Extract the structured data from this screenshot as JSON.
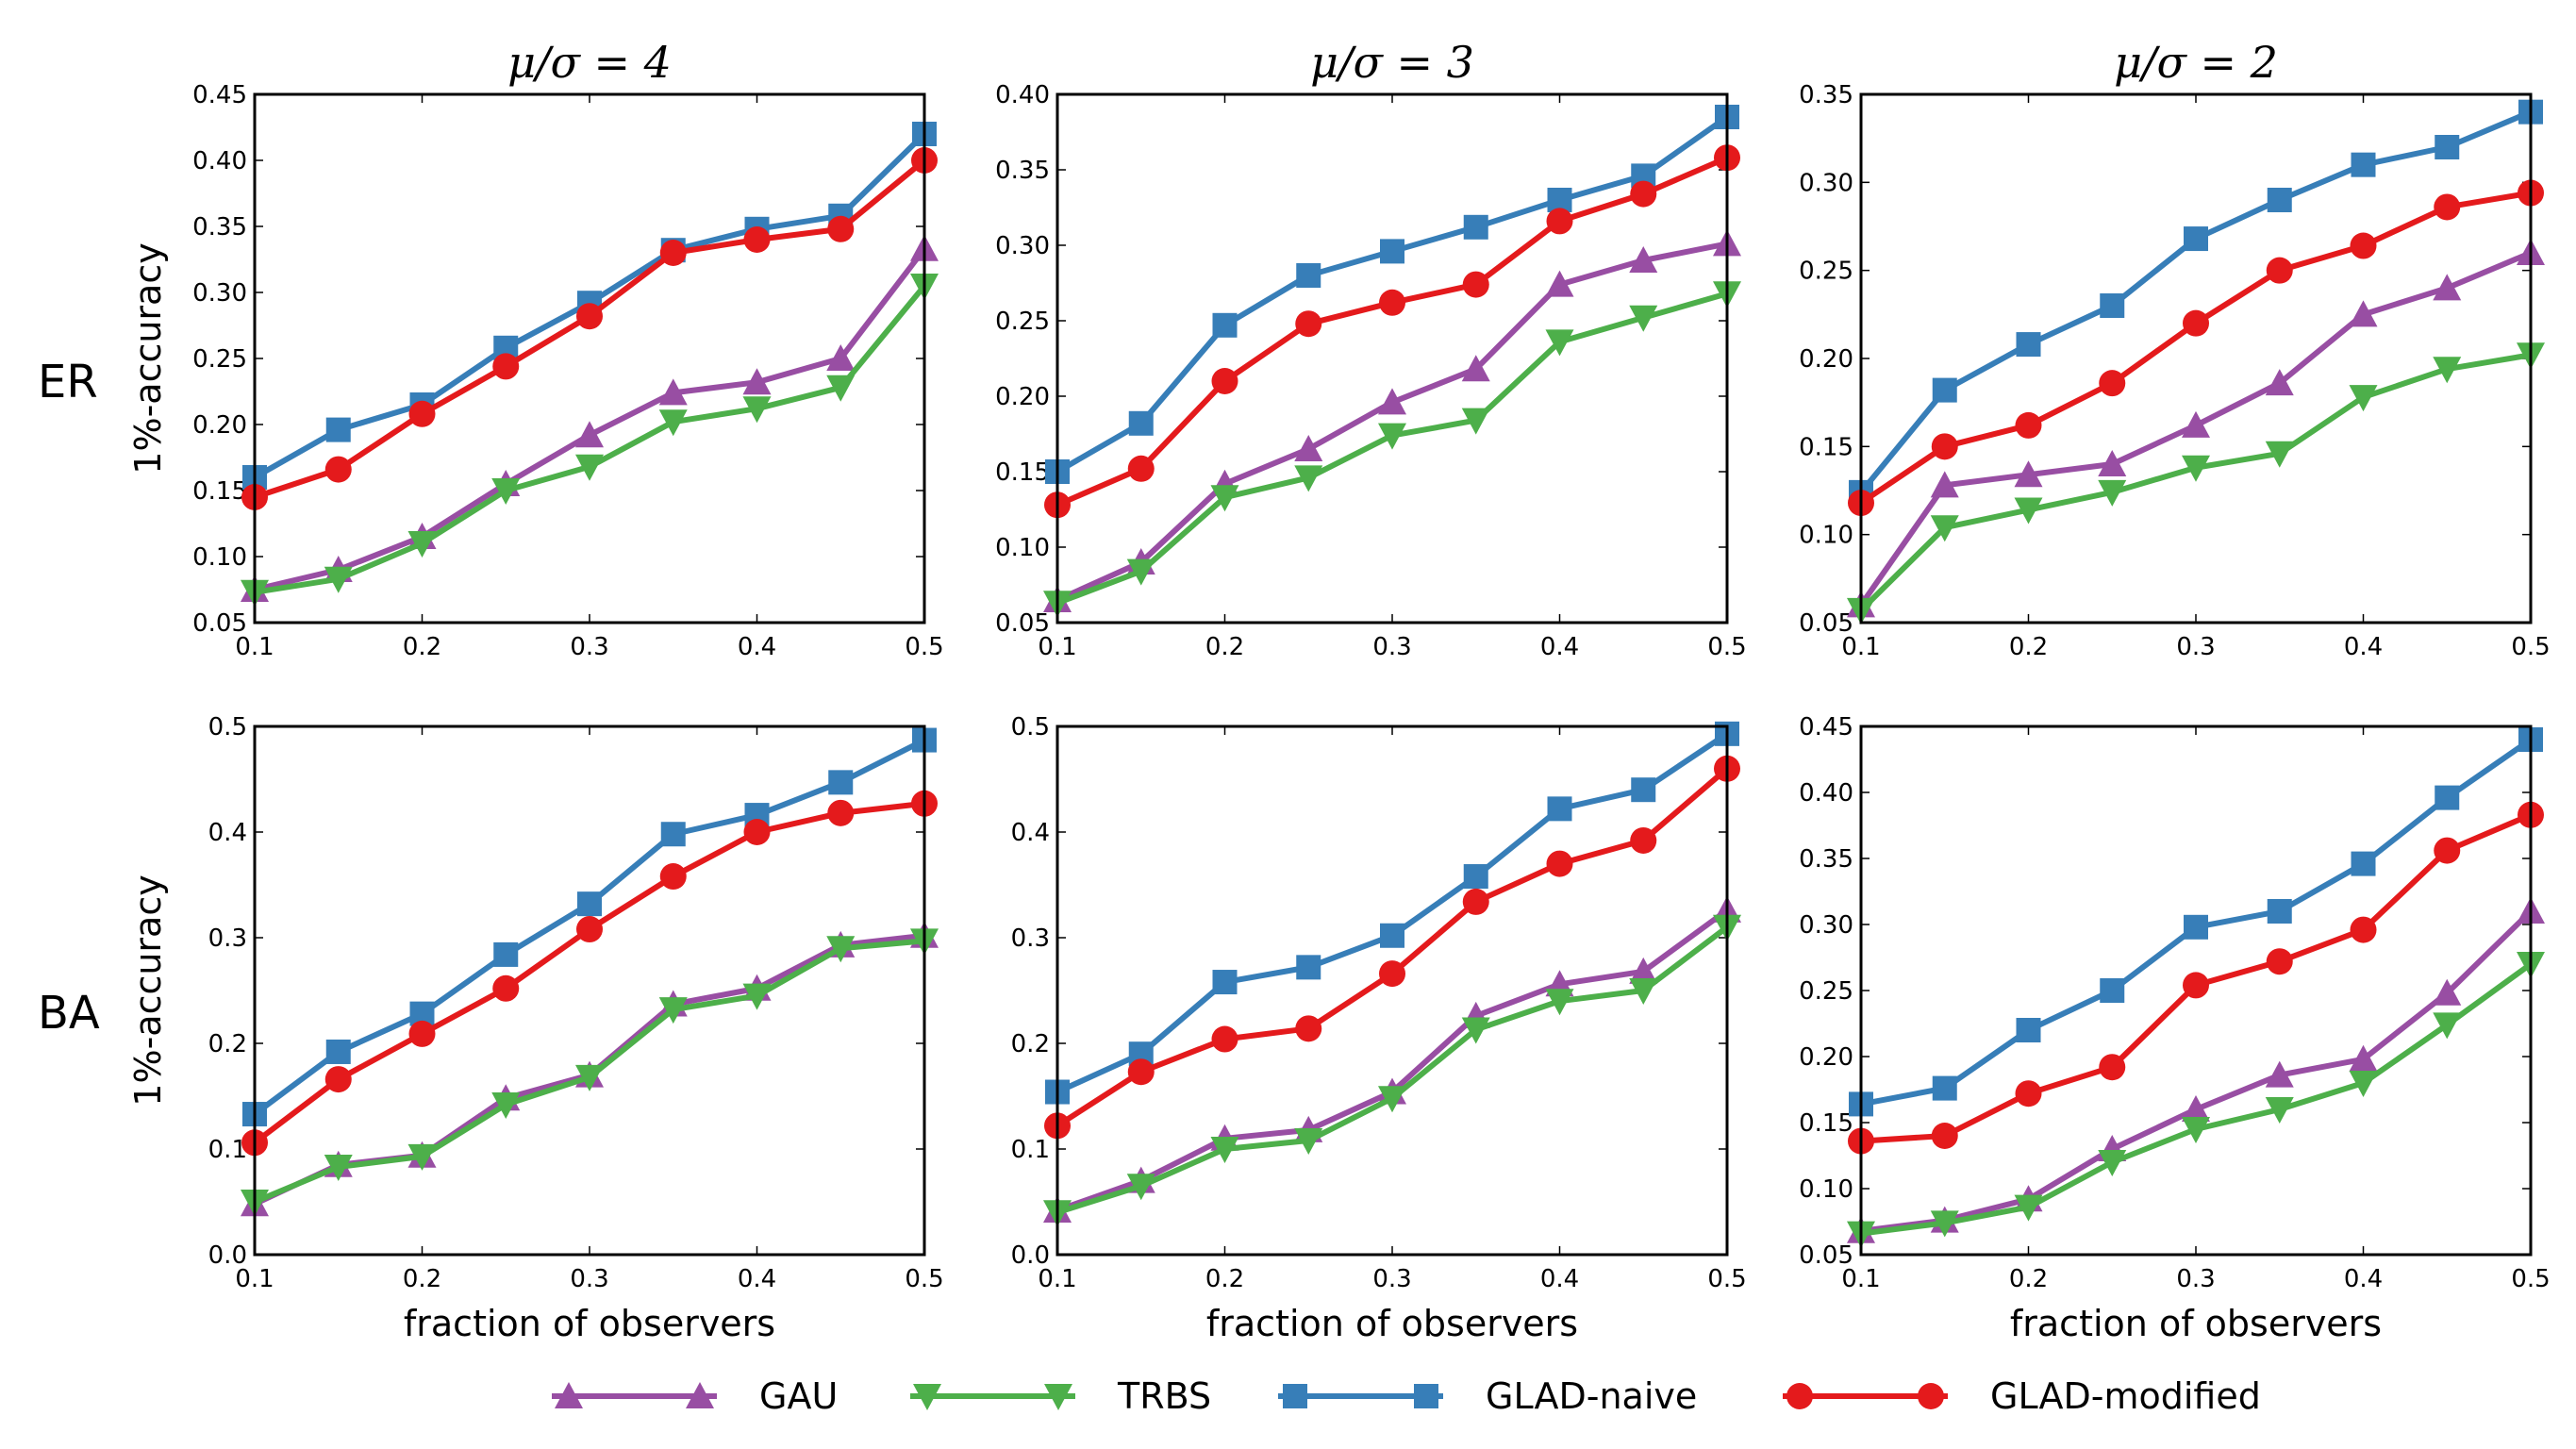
{
  "colors": {
    "GAU": "#984ea3",
    "TRBS": "#4daf4a",
    "GLAD-naive": "#377eb8",
    "GLAD-modified": "#e41a1c"
  },
  "legend": [
    {
      "name": "GAU",
      "marker": "triangle-up"
    },
    {
      "name": "TRBS",
      "marker": "triangle-down"
    },
    {
      "name": "GLAD-naive",
      "marker": "square"
    },
    {
      "name": "GLAD-modified",
      "marker": "circle"
    }
  ],
  "row_labels": [
    "ER",
    "BA"
  ],
  "col_titles": [
    "μ/σ = 4",
    "μ/σ = 3",
    "μ/σ = 2"
  ],
  "chart_data": [
    {
      "type": "line",
      "row": 0,
      "col": 0,
      "title": "μ/σ = 4",
      "xlabel": "",
      "ylabel": "1%-accuracy",
      "x": [
        0.1,
        0.15,
        0.2,
        0.25,
        0.3,
        0.35,
        0.4,
        0.45,
        0.5
      ],
      "xlim": [
        0.1,
        0.5
      ],
      "ylim": [
        0.05,
        0.45
      ],
      "xticks": [
        "0.1",
        "0.2",
        "0.3",
        "0.4",
        "0.5"
      ],
      "yticks": [
        "0.05",
        "0.10",
        "0.15",
        "0.20",
        "0.25",
        "0.30",
        "0.35",
        "0.40",
        "0.45"
      ],
      "series": [
        {
          "name": "GAU",
          "values": [
            0.075,
            0.09,
            0.115,
            0.155,
            0.192,
            0.224,
            0.232,
            0.25,
            0.333
          ]
        },
        {
          "name": "TRBS",
          "values": [
            0.073,
            0.083,
            0.11,
            0.15,
            0.168,
            0.202,
            0.212,
            0.228,
            0.305
          ]
        },
        {
          "name": "GLAD-naive",
          "values": [
            0.16,
            0.196,
            0.215,
            0.258,
            0.292,
            0.332,
            0.348,
            0.358,
            0.42
          ]
        },
        {
          "name": "GLAD-modified",
          "values": [
            0.145,
            0.166,
            0.208,
            0.244,
            0.282,
            0.33,
            0.34,
            0.348,
            0.4
          ]
        }
      ]
    },
    {
      "type": "line",
      "row": 0,
      "col": 1,
      "title": "μ/σ = 3",
      "xlabel": "",
      "ylabel": "",
      "x": [
        0.1,
        0.15,
        0.2,
        0.25,
        0.3,
        0.35,
        0.4,
        0.45,
        0.5
      ],
      "xlim": [
        0.1,
        0.5
      ],
      "ylim": [
        0.05,
        0.4
      ],
      "xticks": [
        "0.1",
        "0.2",
        "0.3",
        "0.4",
        "0.5"
      ],
      "yticks": [
        "0.05",
        "0.10",
        "0.15",
        "0.20",
        "0.25",
        "0.30",
        "0.35",
        "0.40"
      ],
      "series": [
        {
          "name": "GAU",
          "values": [
            0.065,
            0.09,
            0.142,
            0.165,
            0.196,
            0.218,
            0.274,
            0.29,
            0.301
          ]
        },
        {
          "name": "TRBS",
          "values": [
            0.063,
            0.084,
            0.133,
            0.146,
            0.174,
            0.184,
            0.236,
            0.252,
            0.268
          ]
        },
        {
          "name": "GLAD-naive",
          "values": [
            0.15,
            0.182,
            0.247,
            0.28,
            0.296,
            0.312,
            0.33,
            0.346,
            0.385
          ]
        },
        {
          "name": "GLAD-modified",
          "values": [
            0.128,
            0.152,
            0.21,
            0.248,
            0.262,
            0.274,
            0.316,
            0.334,
            0.358
          ]
        }
      ]
    },
    {
      "type": "line",
      "row": 0,
      "col": 2,
      "title": "μ/σ = 2",
      "xlabel": "",
      "ylabel": "",
      "x": [
        0.1,
        0.15,
        0.2,
        0.25,
        0.3,
        0.35,
        0.4,
        0.45,
        0.5
      ],
      "xlim": [
        0.1,
        0.5
      ],
      "ylim": [
        0.05,
        0.35
      ],
      "xticks": [
        "0.1",
        "0.2",
        "0.3",
        "0.4",
        "0.5"
      ],
      "yticks": [
        "0.05",
        "0.10",
        "0.15",
        "0.20",
        "0.25",
        "0.30",
        "0.35"
      ],
      "series": [
        {
          "name": "GAU",
          "values": [
            0.06,
            0.128,
            0.134,
            0.14,
            0.162,
            0.186,
            0.225,
            0.24,
            0.26
          ]
        },
        {
          "name": "TRBS",
          "values": [
            0.057,
            0.104,
            0.114,
            0.124,
            0.138,
            0.146,
            0.178,
            0.194,
            0.202
          ]
        },
        {
          "name": "GLAD-naive",
          "values": [
            0.124,
            0.182,
            0.208,
            0.23,
            0.268,
            0.29,
            0.31,
            0.32,
            0.34
          ]
        },
        {
          "name": "GLAD-modified",
          "values": [
            0.118,
            0.15,
            0.162,
            0.186,
            0.22,
            0.25,
            0.264,
            0.286,
            0.294
          ]
        }
      ]
    },
    {
      "type": "line",
      "row": 1,
      "col": 0,
      "title": "",
      "xlabel": "fraction of observers",
      "ylabel": "1%-accuracy",
      "x": [
        0.1,
        0.15,
        0.2,
        0.25,
        0.3,
        0.35,
        0.4,
        0.45,
        0.5
      ],
      "xlim": [
        0.1,
        0.5
      ],
      "ylim": [
        0.0,
        0.5
      ],
      "xticks": [
        "0.1",
        "0.2",
        "0.3",
        "0.4",
        "0.5"
      ],
      "yticks": [
        "0.0",
        "0.1",
        "0.2",
        "0.3",
        "0.4",
        "0.5"
      ],
      "series": [
        {
          "name": "GAU",
          "values": [
            0.048,
            0.085,
            0.094,
            0.148,
            0.17,
            0.237,
            0.252,
            0.293,
            0.302
          ]
        },
        {
          "name": "TRBS",
          "values": [
            0.05,
            0.083,
            0.093,
            0.142,
            0.168,
            0.232,
            0.245,
            0.29,
            0.297
          ]
        },
        {
          "name": "GLAD-naive",
          "values": [
            0.133,
            0.192,
            0.228,
            0.284,
            0.332,
            0.398,
            0.416,
            0.447,
            0.487
          ]
        },
        {
          "name": "GLAD-modified",
          "values": [
            0.106,
            0.166,
            0.209,
            0.252,
            0.308,
            0.358,
            0.4,
            0.418,
            0.427
          ]
        }
      ]
    },
    {
      "type": "line",
      "row": 1,
      "col": 1,
      "title": "",
      "xlabel": "fraction of observers",
      "ylabel": "",
      "x": [
        0.1,
        0.15,
        0.2,
        0.25,
        0.3,
        0.35,
        0.4,
        0.45,
        0.5
      ],
      "xlim": [
        0.1,
        0.5
      ],
      "ylim": [
        0.0,
        0.5
      ],
      "xticks": [
        "0.1",
        "0.2",
        "0.3",
        "0.4",
        "0.5"
      ],
      "yticks": [
        "0.0",
        "0.1",
        "0.2",
        "0.3",
        "0.4",
        "0.5"
      ],
      "series": [
        {
          "name": "GAU",
          "values": [
            0.042,
            0.07,
            0.11,
            0.118,
            0.154,
            0.226,
            0.256,
            0.268,
            0.326
          ]
        },
        {
          "name": "TRBS",
          "values": [
            0.04,
            0.065,
            0.1,
            0.108,
            0.148,
            0.213,
            0.24,
            0.25,
            0.31
          ]
        },
        {
          "name": "GLAD-naive",
          "values": [
            0.154,
            0.19,
            0.258,
            0.272,
            0.302,
            0.358,
            0.422,
            0.44,
            0.493
          ]
        },
        {
          "name": "GLAD-modified",
          "values": [
            0.122,
            0.173,
            0.204,
            0.214,
            0.266,
            0.334,
            0.37,
            0.392,
            0.46
          ]
        }
      ]
    },
    {
      "type": "line",
      "row": 1,
      "col": 2,
      "title": "",
      "xlabel": "fraction of observers",
      "ylabel": "",
      "x": [
        0.1,
        0.15,
        0.2,
        0.25,
        0.3,
        0.35,
        0.4,
        0.45,
        0.5
      ],
      "xlim": [
        0.1,
        0.5
      ],
      "ylim": [
        0.05,
        0.45
      ],
      "xticks": [
        "0.1",
        "0.2",
        "0.3",
        "0.4",
        "0.5"
      ],
      "yticks": [
        "0.05",
        "0.10",
        "0.15",
        "0.20",
        "0.25",
        "0.30",
        "0.35",
        "0.40",
        "0.45"
      ],
      "series": [
        {
          "name": "GAU",
          "values": [
            0.068,
            0.076,
            0.092,
            0.13,
            0.16,
            0.186,
            0.198,
            0.248,
            0.31
          ]
        },
        {
          "name": "TRBS",
          "values": [
            0.066,
            0.074,
            0.086,
            0.12,
            0.145,
            0.16,
            0.18,
            0.224,
            0.27
          ]
        },
        {
          "name": "GLAD-naive",
          "values": [
            0.164,
            0.176,
            0.22,
            0.25,
            0.298,
            0.31,
            0.346,
            0.396,
            0.44
          ]
        },
        {
          "name": "GLAD-modified",
          "values": [
            0.136,
            0.14,
            0.172,
            0.192,
            0.254,
            0.272,
            0.296,
            0.356,
            0.383
          ]
        }
      ]
    }
  ]
}
